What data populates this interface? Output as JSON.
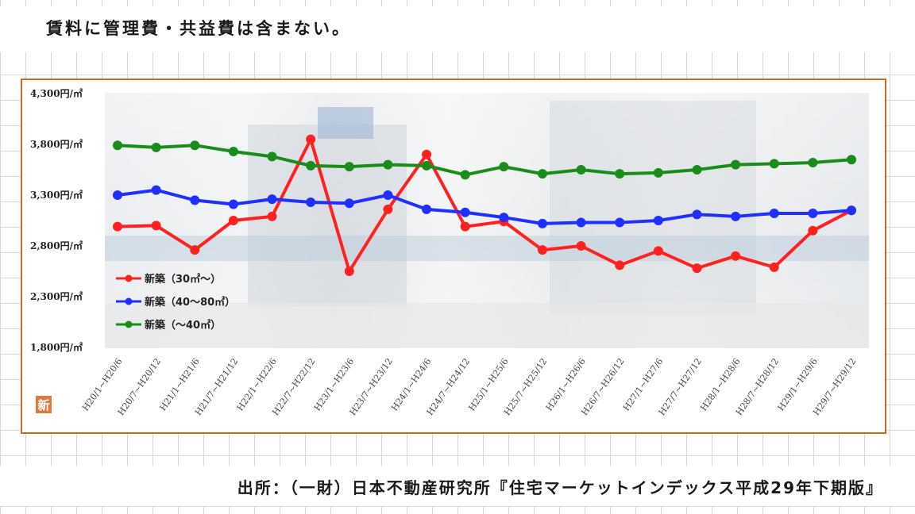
{
  "note": "賃料に管理費・共益費は含まない。",
  "source": "出所：（一財）日本不動産研究所『住宅マーケットインデックス平成29年下期版』",
  "badge": "新",
  "colors": {
    "frame": "#d2691e",
    "series": [
      "#ff2020",
      "#1f2fff",
      "#1a8c1a"
    ]
  },
  "chart_data": {
    "type": "line",
    "ylim": [
      1800,
      4300
    ],
    "yticks": [
      "4,300円/㎡",
      "3,800円/㎡",
      "3,300円/㎡",
      "2,800円/㎡",
      "2,300円/㎡",
      "1,800円/㎡"
    ],
    "categories": [
      "H20/1~H20/6",
      "H20/7~H20/12",
      "H21/1~H21/6",
      "H21/7~H21/12",
      "H22/1~H22/6",
      "H22/7~H22/12",
      "H23/1~H23/6",
      "H23/7~H23/12",
      "H24/1~H24/6",
      "H24/7~H24/12",
      "H25/1~H25/6",
      "H25/7~H25/12",
      "H26/1~H26/6",
      "H26/7~H26/12",
      "H27/1~H27/6",
      "H27/7~H27/12",
      "H28/1~H28/6",
      "H28/7~H28/12",
      "H29/1~H29/6",
      "H29/7~H29/12"
    ],
    "series": [
      {
        "name": "新築（30㎡～）",
        "values": [
          2990,
          3000,
          2760,
          3050,
          3090,
          3850,
          2550,
          3160,
          3700,
          2990,
          3040,
          2760,
          2800,
          2610,
          2750,
          2580,
          2700,
          2590,
          2950,
          3150
        ]
      },
      {
        "name": "新築（40～80㎡）",
        "values": [
          3300,
          3350,
          3250,
          3210,
          3260,
          3230,
          3220,
          3300,
          3160,
          3130,
          3080,
          3020,
          3030,
          3030,
          3050,
          3110,
          3090,
          3120,
          3120,
          3150
        ]
      },
      {
        "name": "新築（～40㎡）",
        "values": [
          3790,
          3770,
          3790,
          3730,
          3680,
          3590,
          3580,
          3600,
          3590,
          3500,
          3580,
          3510,
          3550,
          3510,
          3520,
          3550,
          3600,
          3610,
          3620,
          3650
        ]
      }
    ],
    "grid": false,
    "legend_position": "inside-left"
  }
}
